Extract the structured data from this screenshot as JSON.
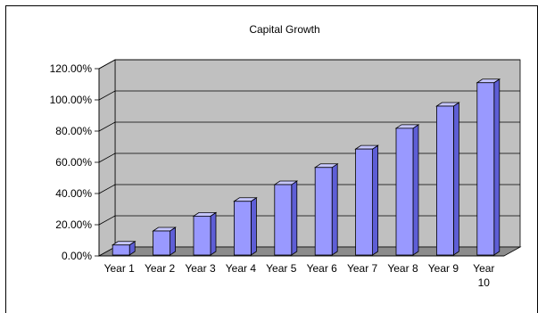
{
  "chart_data": {
    "type": "bar",
    "title": "Capital Growth",
    "xlabel": "",
    "ylabel": "",
    "categories": [
      "Year 1",
      "Year 2",
      "Year 3",
      "Year 4",
      "Year 5",
      "Year 6",
      "Year 7",
      "Year 8",
      "Year 9",
      "Year 10"
    ],
    "values": [
      7.0,
      16.0,
      25.5,
      35.0,
      45.7,
      56.7,
      68.5,
      81.8,
      96.0,
      111.0
    ],
    "value_format": "percent",
    "ylim": [
      0,
      120
    ],
    "yticks": [
      "0.00%",
      "20.00%",
      "40.00%",
      "60.00%",
      "80.00%",
      "100.00%",
      "120.00%"
    ],
    "grid": true,
    "three_d": true,
    "legend": "none",
    "colors": {
      "bar_front": "#9999ff",
      "bar_side": "#5e5ed6",
      "bar_top": "#c7c7ff",
      "plot_wall": "#c0c0c0",
      "plot_floor": "#8c8c8c",
      "bar_stroke": "#000000"
    }
  }
}
